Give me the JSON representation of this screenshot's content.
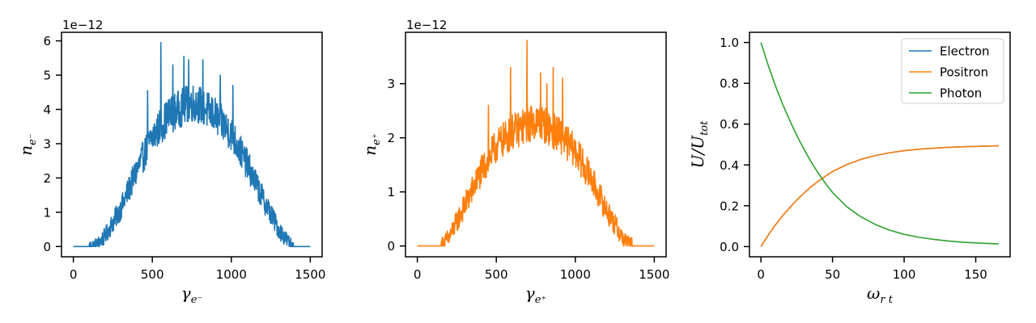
{
  "colors": {
    "electron": "#1f77b4",
    "positron": "#ff7f0e",
    "photon": "#2ca02c"
  },
  "chart_data": [
    {
      "type": "line",
      "ylabel": "n_e⁻",
      "xlabel": "γ_e⁻",
      "offset_text": "1e−12",
      "xlim": [
        -75,
        1575
      ],
      "ylim": [
        -0.3,
        6.25
      ],
      "xticks": [
        0,
        500,
        1000,
        1500
      ],
      "xtick_labels": [
        "0",
        "500",
        "1000",
        "1500"
      ],
      "yticks": [
        0,
        1,
        2,
        3,
        4,
        5,
        6
      ],
      "ytick_labels": [
        "0",
        "1",
        "2",
        "3",
        "4",
        "5",
        "6"
      ],
      "grid": false,
      "series": [
        {
          "color": "#1f77b4",
          "envelope": {
            "x": [
              0,
              100,
              150,
              200,
              300,
              400,
              500,
              600,
              700,
              750,
              800,
              900,
              1000,
              1100,
              1200,
              1300,
              1350,
              1380,
              1400,
              1500
            ],
            "y": [
              0,
              0,
              0.05,
              0.3,
              1.1,
              2.2,
              3.2,
              3.8,
              4.1,
              4.2,
              4.15,
              3.8,
              3.3,
              2.4,
              1.4,
              0.5,
              0.2,
              0.05,
              0,
              0
            ]
          },
          "peaks": [
            [
              555,
              5.95
            ],
            [
              700,
              5.55
            ],
            [
              730,
              5.45
            ],
            [
              820,
              5.45
            ],
            [
              630,
              5.3
            ],
            [
              930,
              5.0
            ],
            [
              470,
              4.55
            ],
            [
              1010,
              4.7
            ]
          ],
          "noise_amplitude": 0.45
        }
      ]
    },
    {
      "type": "line",
      "ylabel": "n_e⁺",
      "xlabel": "γ_e⁺",
      "offset_text": "1e−12",
      "xlim": [
        -75,
        1575
      ],
      "ylim": [
        -0.2,
        3.95
      ],
      "xticks": [
        0,
        500,
        1000,
        1500
      ],
      "xtick_labels": [
        "0",
        "500",
        "1000",
        "1500"
      ],
      "yticks": [
        0,
        1,
        2,
        3
      ],
      "ytick_labels": [
        "0",
        "1",
        "2",
        "3"
      ],
      "grid": false,
      "series": [
        {
          "color": "#ff7f0e",
          "envelope": {
            "x": [
              0,
              150,
              200,
              300,
              400,
              500,
              600,
              700,
              750,
              800,
              900,
              1000,
              1100,
              1200,
              1300,
              1340,
              1360,
              1500
            ],
            "y": [
              0,
              0,
              0.15,
              0.75,
              1.35,
              1.85,
              2.1,
              2.25,
              2.3,
              2.25,
              2.05,
              1.75,
              1.25,
              0.65,
              0.15,
              0.03,
              0,
              0
            ]
          },
          "peaks": [
            [
              695,
              3.8
            ],
            [
              590,
              3.3
            ],
            [
              780,
              3.2
            ],
            [
              860,
              3.3
            ],
            [
              920,
              3.1
            ],
            [
              820,
              3.0
            ],
            [
              450,
              2.6
            ]
          ],
          "noise_amplitude": 0.35
        }
      ]
    },
    {
      "type": "line",
      "ylabel": "U/U_tot",
      "xlabel": "ω_r t",
      "xlim": [
        -8,
        174
      ],
      "ylim": [
        -0.05,
        1.05
      ],
      "xticks": [
        0,
        50,
        100,
        150
      ],
      "xtick_labels": [
        "0",
        "50",
        "100",
        "150"
      ],
      "yticks": [
        0,
        0.2,
        0.4,
        0.6,
        0.8,
        1.0
      ],
      "ytick_labels": [
        "0.0",
        "0.2",
        "0.4",
        "0.6",
        "0.8",
        "1.0"
      ],
      "grid": false,
      "legend": "top-right",
      "series": [
        {
          "name": "Electron",
          "color": "#1f77b4",
          "x": [
            0,
            5,
            10,
            15,
            20,
            25,
            30,
            35,
            40,
            45,
            50,
            60,
            70,
            80,
            90,
            100,
            110,
            120,
            130,
            140,
            150,
            160,
            166
          ],
          "y": [
            0,
            0.055,
            0.105,
            0.15,
            0.19,
            0.228,
            0.262,
            0.293,
            0.32,
            0.345,
            0.368,
            0.402,
            0.428,
            0.446,
            0.46,
            0.47,
            0.477,
            0.482,
            0.486,
            0.489,
            0.491,
            0.493,
            0.494
          ]
        },
        {
          "name": "Positron",
          "color": "#ff7f0e",
          "x": [
            0,
            5,
            10,
            15,
            20,
            25,
            30,
            35,
            40,
            45,
            50,
            60,
            70,
            80,
            90,
            100,
            110,
            120,
            130,
            140,
            150,
            160,
            166
          ],
          "y": [
            0,
            0.055,
            0.105,
            0.15,
            0.19,
            0.228,
            0.262,
            0.293,
            0.32,
            0.345,
            0.368,
            0.402,
            0.428,
            0.446,
            0.46,
            0.47,
            0.477,
            0.482,
            0.486,
            0.489,
            0.491,
            0.493,
            0.494
          ]
        },
        {
          "name": "Photon",
          "color": "#2ca02c",
          "x": [
            0,
            5,
            10,
            15,
            20,
            25,
            30,
            35,
            40,
            45,
            50,
            60,
            70,
            80,
            90,
            100,
            110,
            120,
            130,
            140,
            150,
            160,
            166
          ],
          "y": [
            1.0,
            0.89,
            0.79,
            0.7,
            0.62,
            0.545,
            0.478,
            0.415,
            0.36,
            0.31,
            0.265,
            0.195,
            0.145,
            0.108,
            0.08,
            0.06,
            0.046,
            0.036,
            0.028,
            0.022,
            0.018,
            0.015,
            0.013
          ]
        }
      ]
    }
  ]
}
